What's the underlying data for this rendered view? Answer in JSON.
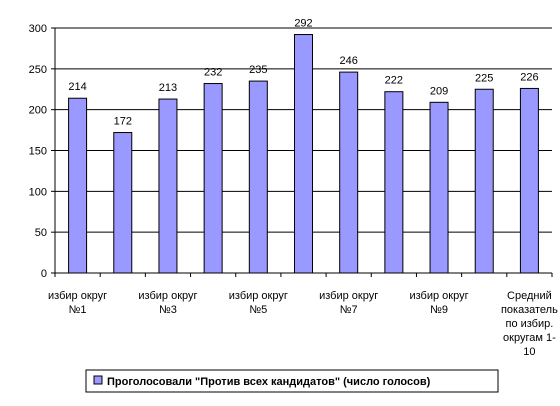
{
  "chart_data": {
    "type": "bar",
    "title": "",
    "xlabel": "",
    "ylabel": "",
    "ylim": [
      0,
      300
    ],
    "yticks": [
      0,
      50,
      100,
      150,
      200,
      250,
      300
    ],
    "grid": true,
    "legend_position": "bottom",
    "bar_color": "#9999ff",
    "categories": [
      "избир округ №1",
      "",
      "избир округ №3",
      "",
      "избир округ №5",
      "",
      "избир округ №7",
      "",
      "избир округ №9",
      "",
      "Средний показатель по избир. округам 1-10"
    ],
    "category_label_lines": [
      [
        "избир округ",
        "№1"
      ],
      [],
      [
        "избир округ",
        "№3"
      ],
      [],
      [
        "избир округ",
        "№5"
      ],
      [],
      [
        "избир округ",
        "№7"
      ],
      [],
      [
        "избир округ",
        "№9"
      ],
      [],
      [
        "Средний",
        "показатель",
        "по  избир.",
        "округам 1-",
        "10"
      ]
    ],
    "series": [
      {
        "name": "Проголосовали \"Против всех кандидатов\" (число голосов)",
        "values": [
          214,
          172,
          213,
          232,
          235,
          292,
          246,
          222,
          209,
          225,
          226
        ]
      }
    ]
  }
}
